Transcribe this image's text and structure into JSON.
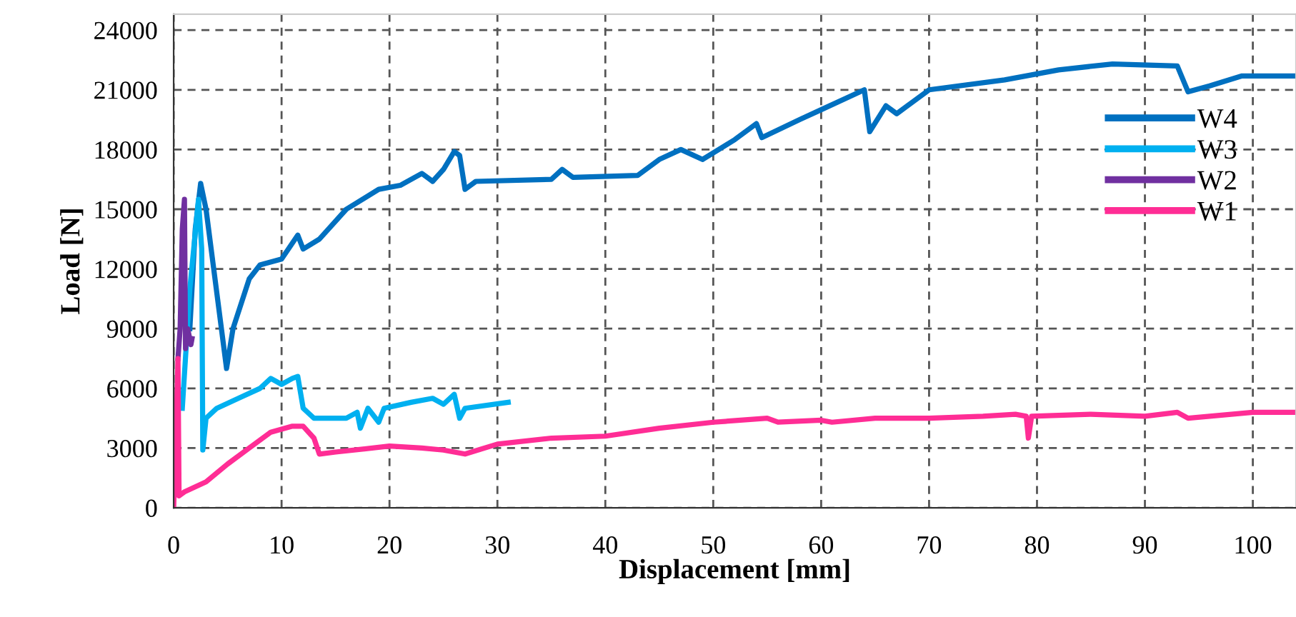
{
  "chart_data": {
    "type": "line",
    "xlabel": "Displacement [mm]",
    "ylabel": "Load [N]",
    "xlim": [
      0,
      104
    ],
    "ylim": [
      0,
      24800
    ],
    "xticks": [
      0,
      10,
      20,
      30,
      40,
      50,
      60,
      70,
      80,
      90,
      100
    ],
    "yticks": [
      0,
      3000,
      6000,
      9000,
      12000,
      15000,
      18000,
      21000,
      24000
    ],
    "grid": true,
    "legend": "right",
    "marker": "none",
    "line_style": "solid",
    "series": [
      {
        "name": "W4",
        "color": "#0070c0",
        "x": [
          1.5,
          2.0,
          2.5,
          3.0,
          4.9,
          5.5,
          7,
          8,
          10,
          11.5,
          12,
          13.5,
          16,
          19,
          21,
          23,
          24,
          25,
          26,
          26.5,
          27,
          28,
          35,
          36,
          37,
          43,
          45,
          47,
          49,
          52,
          54,
          54.5,
          58,
          60,
          64,
          64.5,
          66,
          67,
          70,
          77,
          82,
          87,
          93,
          94,
          96,
          99,
          104
        ],
        "values": [
          9000,
          14000,
          16300,
          15000,
          7000,
          9000,
          11500,
          12200,
          12500,
          13700,
          13000,
          13500,
          15000,
          16000,
          16200,
          16800,
          16400,
          17000,
          17900,
          17700,
          16000,
          16400,
          16500,
          17000,
          16600,
          16700,
          17500,
          18000,
          17500,
          18500,
          19300,
          18600,
          19500,
          20000,
          21000,
          18900,
          20200,
          19800,
          21000,
          21500,
          22000,
          22300,
          22200,
          20900,
          21200,
          21700,
          21700
        ]
      },
      {
        "name": "W3",
        "color": "#00b0f0",
        "x": [
          0.8,
          1.5,
          2.3,
          2.6,
          2.7,
          3,
          4,
          6,
          8,
          9,
          10,
          11,
          11.5,
          12,
          13,
          16,
          17,
          17.3,
          18,
          19,
          19.5,
          22,
          24,
          25,
          26,
          26.5,
          27,
          31
        ],
        "values": [
          5000,
          11000,
          15500,
          13000,
          2900,
          4500,
          5000,
          5500,
          6000,
          6500,
          6200,
          6500,
          6600,
          5000,
          4500,
          4500,
          4800,
          4000,
          5000,
          4300,
          5000,
          5300,
          5500,
          5200,
          5700,
          4500,
          5000,
          5300
        ]
      },
      {
        "name": "W2",
        "color": "#7030a0",
        "x": [
          0.4,
          0.6,
          0.8,
          1.0,
          1.1,
          1.3,
          1.6,
          1.7
        ],
        "values": [
          7500,
          9000,
          14000,
          15500,
          8000,
          9000,
          8200,
          8500
        ]
      },
      {
        "name": "W1",
        "color": "#ff2d95",
        "x": [
          0,
          0.2,
          0.4,
          0.5,
          1,
          3,
          5,
          7,
          9,
          11,
          12,
          13,
          13.5,
          15,
          20,
          23,
          25,
          27,
          30,
          35,
          40,
          45,
          50,
          55,
          56,
          60,
          61,
          65,
          70,
          75,
          78,
          79,
          79.2,
          79.5,
          85,
          90,
          93,
          94,
          96,
          100,
          104
        ],
        "values": [
          0,
          3500,
          7500,
          600,
          800,
          1300,
          2200,
          3000,
          3800,
          4100,
          4100,
          3500,
          2700,
          2800,
          3100,
          3000,
          2900,
          2700,
          3200,
          3500,
          3600,
          4000,
          4300,
          4500,
          4300,
          4400,
          4300,
          4500,
          4500,
          4600,
          4700,
          4600,
          3500,
          4600,
          4700,
          4600,
          4800,
          4500,
          4600,
          4800,
          4800
        ]
      }
    ]
  }
}
